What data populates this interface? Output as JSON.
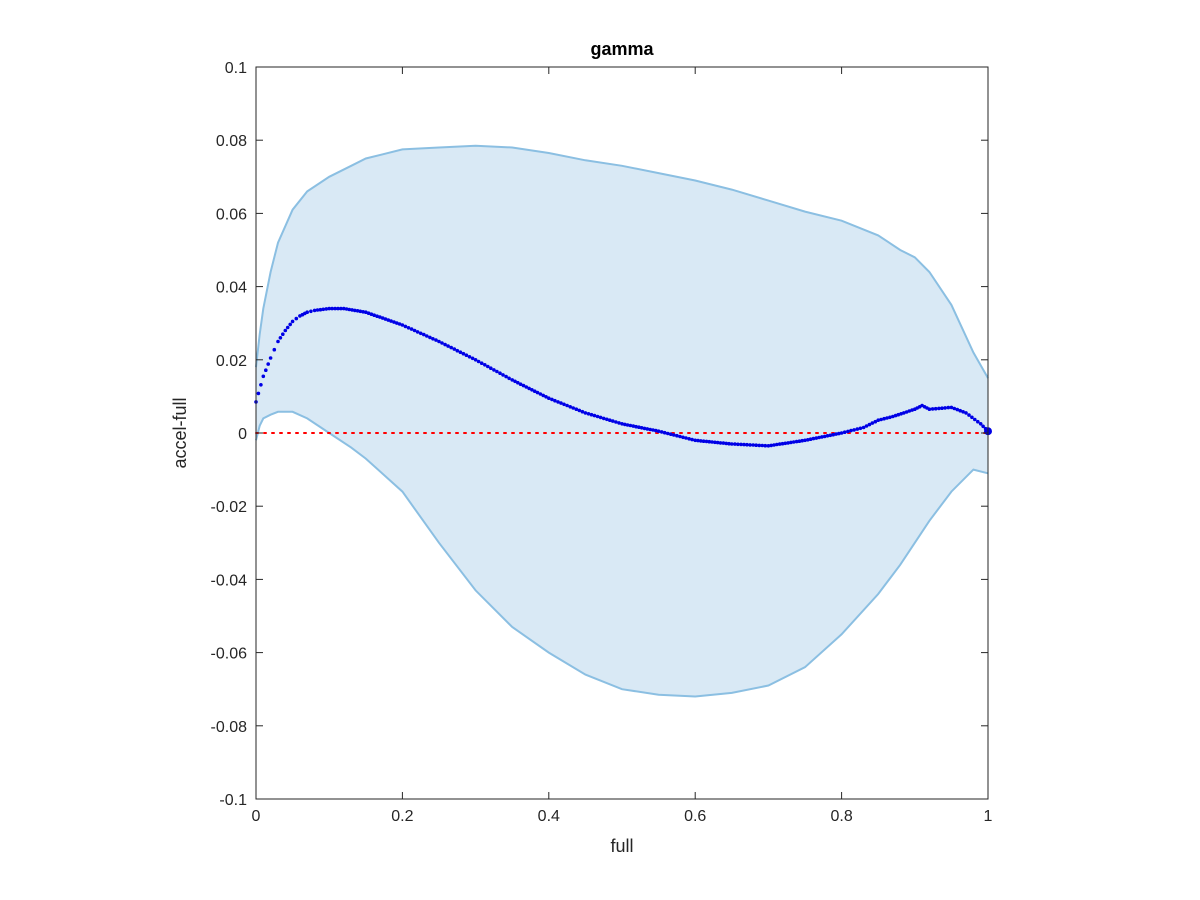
{
  "chart_data": {
    "type": "line",
    "title": "gamma",
    "xlabel": "full",
    "ylabel": "accel-full",
    "xlim": [
      0,
      1
    ],
    "ylim": [
      -0.1,
      0.1
    ],
    "xticks": [
      0,
      0.2,
      0.4,
      0.6,
      0.8,
      1
    ],
    "xtick_labels": [
      "0",
      "0.2",
      "0.4",
      "0.6",
      "0.8",
      "1"
    ],
    "yticks": [
      -0.1,
      -0.08,
      -0.06,
      -0.04,
      -0.02,
      0,
      0.02,
      0.04,
      0.06,
      0.08,
      0.1
    ],
    "ytick_labels": [
      "-0.1",
      "-0.08",
      "-0.06",
      "-0.04",
      "-0.02",
      "0",
      "0.02",
      "0.04",
      "0.06",
      "0.08",
      "0.1"
    ],
    "grid": false,
    "band": {
      "x": [
        0.0,
        0.005,
        0.01,
        0.02,
        0.03,
        0.05,
        0.07,
        0.1,
        0.13,
        0.15,
        0.2,
        0.25,
        0.3,
        0.35,
        0.4,
        0.45,
        0.5,
        0.55,
        0.6,
        0.65,
        0.7,
        0.75,
        0.8,
        0.85,
        0.88,
        0.9,
        0.92,
        0.95,
        0.98,
        1.0
      ],
      "upper": [
        0.018,
        0.027,
        0.034,
        0.044,
        0.052,
        0.061,
        0.066,
        0.07,
        0.073,
        0.075,
        0.0775,
        0.078,
        0.0785,
        0.078,
        0.0765,
        0.0745,
        0.073,
        0.071,
        0.069,
        0.0665,
        0.0635,
        0.0605,
        0.058,
        0.054,
        0.05,
        0.048,
        0.044,
        0.035,
        0.022,
        0.015
      ],
      "lower": [
        -0.002,
        0.002,
        0.004,
        0.005,
        0.0058,
        0.0058,
        0.004,
        0.0,
        -0.004,
        -0.007,
        -0.016,
        -0.03,
        -0.043,
        -0.053,
        -0.06,
        -0.066,
        -0.07,
        -0.0715,
        -0.072,
        -0.071,
        -0.069,
        -0.064,
        -0.055,
        -0.044,
        -0.036,
        -0.03,
        -0.024,
        -0.016,
        -0.01,
        -0.011
      ],
      "fill_color": "#d9e9f5",
      "line_color": "#8bbfe2"
    },
    "series": [
      {
        "x": [
          0.0,
          0.01,
          0.02,
          0.03,
          0.04,
          0.05,
          0.06,
          0.07,
          0.08,
          0.1,
          0.12,
          0.15,
          0.2,
          0.25,
          0.3,
          0.35,
          0.4,
          0.45,
          0.5,
          0.55,
          0.6,
          0.65,
          0.7,
          0.75,
          0.8,
          0.83,
          0.85,
          0.87,
          0.9,
          0.91,
          0.92,
          0.95,
          0.97,
          0.99,
          1.0
        ],
        "y": [
          0.0085,
          0.0155,
          0.0205,
          0.025,
          0.028,
          0.0305,
          0.032,
          0.033,
          0.0335,
          0.034,
          0.034,
          0.033,
          0.0295,
          0.025,
          0.02,
          0.0145,
          0.0095,
          0.0055,
          0.0025,
          0.0005,
          -0.002,
          -0.003,
          -0.0035,
          -0.002,
          0.0,
          0.0015,
          0.0035,
          0.0045,
          0.0065,
          0.0075,
          0.0065,
          0.007,
          0.0055,
          0.0025,
          0.0005
        ],
        "color": "#0000e6"
      }
    ],
    "reference_line": {
      "y": 0,
      "color": "#ff0000",
      "style": "dotted"
    }
  }
}
